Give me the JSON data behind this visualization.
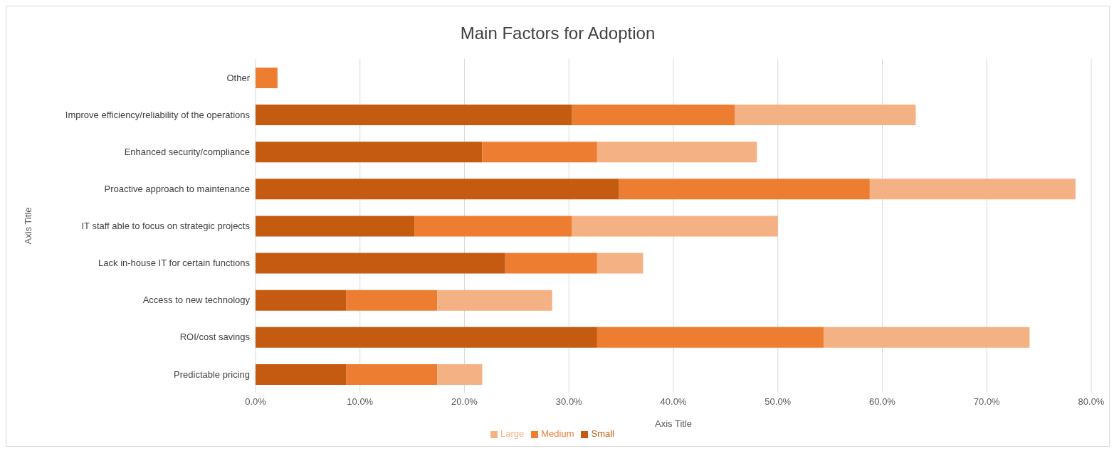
{
  "chart_data": {
    "type": "bar",
    "title": "Main Factors for Adoption",
    "xlabel": "Axis Title",
    "ylabel": "Axis Title",
    "orientation": "horizontal",
    "stacked": true,
    "categories": [
      "Other",
      "Improve efficiency/reliability of the operations",
      "Enhanced security/compliance",
      "Proactive approach to maintenance",
      "IT staff able to focus on strategic projects",
      "Lack in-house IT for certain functions",
      "Access to new technology",
      "ROI/cost savings",
      "Predictable pricing"
    ],
    "series": [
      {
        "name": "Small",
        "color": "#c55a11",
        "values": [
          0,
          30.3,
          21.7,
          34.8,
          15.2,
          23.9,
          8.7,
          32.7,
          8.7
        ]
      },
      {
        "name": "Medium",
        "color": "#ed7d31",
        "values": [
          2.1,
          15.6,
          11.0,
          24.0,
          15.1,
          8.8,
          8.7,
          21.7,
          8.7
        ]
      },
      {
        "name": "Large",
        "color": "#f4b183",
        "values": [
          0,
          17.3,
          15.3,
          19.7,
          19.7,
          4.4,
          11.0,
          19.7,
          4.3
        ]
      }
    ],
    "xlim": [
      0,
      80
    ],
    "xticks": [
      {
        "value": 0,
        "label": "0.0%"
      },
      {
        "value": 10,
        "label": "10.0%"
      },
      {
        "value": 20,
        "label": "20.0%"
      },
      {
        "value": 30,
        "label": "30.0%"
      },
      {
        "value": 40,
        "label": "40.0%"
      },
      {
        "value": 50,
        "label": "50.0%"
      },
      {
        "value": 60,
        "label": "60.0%"
      },
      {
        "value": 70,
        "label": "70.0%"
      },
      {
        "value": 80,
        "label": "80.0%"
      }
    ],
    "grid": "x",
    "legend": "bottom"
  }
}
